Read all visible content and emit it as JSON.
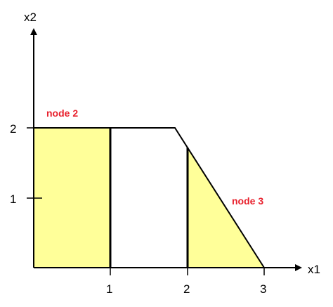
{
  "axes": {
    "x_label": "x1",
    "y_label": "x2",
    "x_ticks": [
      "1",
      "2",
      "3"
    ],
    "y_ticks": [
      "1",
      "2"
    ]
  },
  "nodes": {
    "node2_label": "node 2",
    "node3_label": "node 3"
  },
  "colors": {
    "region_fill": "#ffff99",
    "node_label": "#e8212d",
    "line": "#000000"
  }
}
